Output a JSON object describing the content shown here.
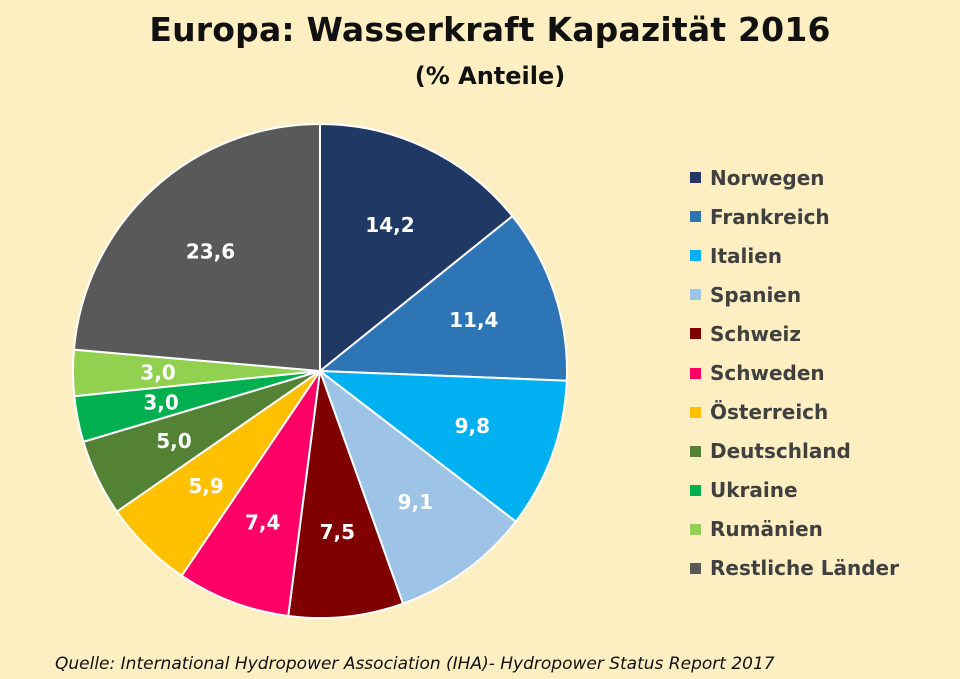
{
  "title": "Europa: Wasserkraft Kapazität 2016",
  "subtitle": "(% Anteile)",
  "source": "Quelle: International Hydropower Association (IHA)- Hydropower Status Report 2017",
  "chart_data": {
    "type": "pie",
    "title": "Europa: Wasserkraft Kapazität 2016",
    "subtitle": "(% Anteile)",
    "legend_position": "right",
    "slices": [
      {
        "name": "Norwegen",
        "value": 14.2,
        "label": "14,2",
        "color": "#1f3864"
      },
      {
        "name": "Frankreich",
        "value": 11.4,
        "label": "11,4",
        "color": "#2e75b6"
      },
      {
        "name": "Italien",
        "value": 9.8,
        "label": "9,8",
        "color": "#00b0f0"
      },
      {
        "name": "Spanien",
        "value": 9.1,
        "label": "9,1",
        "color": "#9dc3e6"
      },
      {
        "name": "Schweiz",
        "value": 7.5,
        "label": "7,5",
        "color": "#800000"
      },
      {
        "name": "Schweden",
        "value": 7.4,
        "label": "7,4",
        "color": "#ff0066"
      },
      {
        "name": "Österreich",
        "value": 5.9,
        "label": "5,9",
        "color": "#ffc000"
      },
      {
        "name": "Deutschland",
        "value": 5.0,
        "label": "5,0",
        "color": "#548235"
      },
      {
        "name": "Ukraine",
        "value": 3.0,
        "label": "3,0",
        "color": "#00b050"
      },
      {
        "name": "Rumänien",
        "value": 3.0,
        "label": "3,0",
        "color": "#92d050"
      },
      {
        "name": "Restliche Länder",
        "value": 23.6,
        "label": "23,6",
        "color": "#595959"
      }
    ]
  }
}
